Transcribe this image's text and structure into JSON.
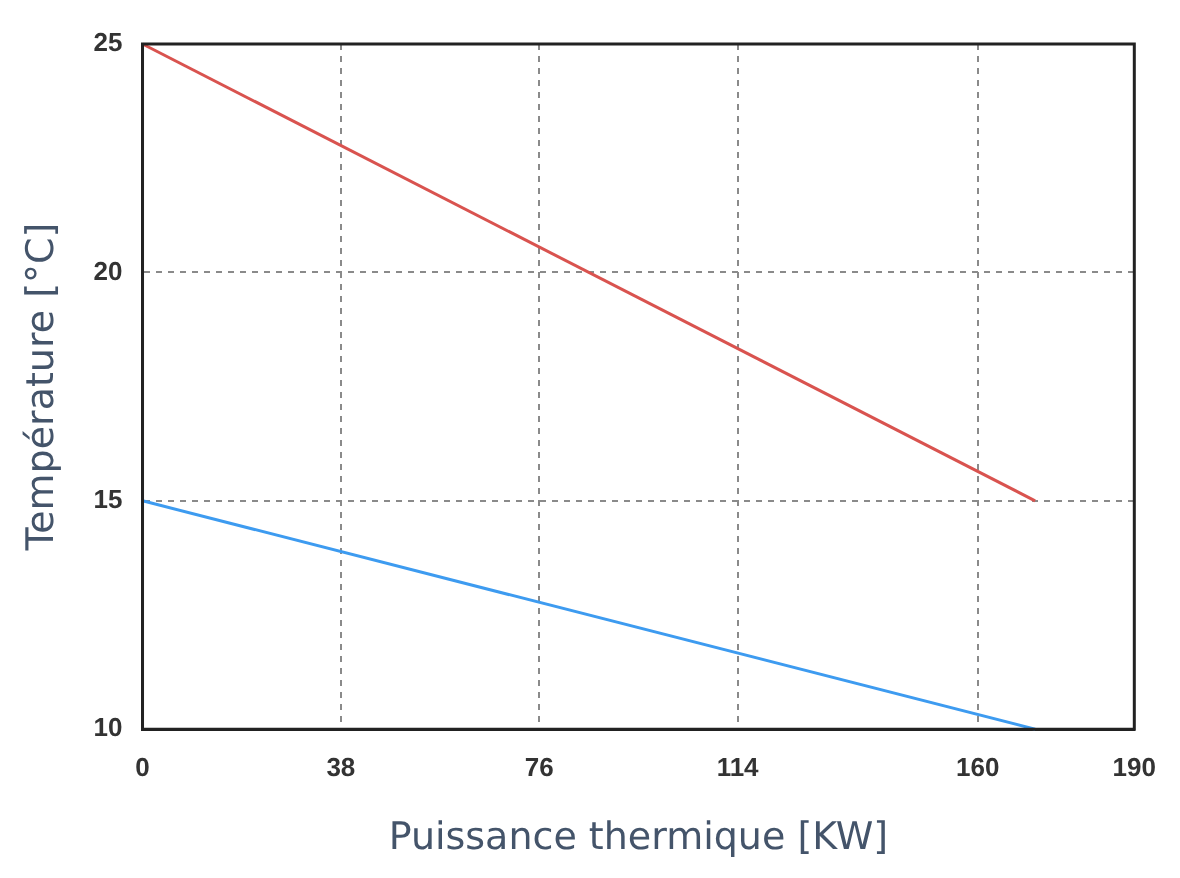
{
  "chart_data": {
    "type": "line",
    "xlabel": "Puissance thermique [KW]",
    "ylabel": "Température [°C]",
    "xlim": [
      0,
      190
    ],
    "xticks": [
      0,
      38,
      76,
      114,
      160,
      190
    ],
    "ylim": [
      10,
      25
    ],
    "yticks": [
      10,
      15,
      20,
      25
    ],
    "grid": true,
    "legend": false,
    "marker": "none",
    "line_style": "solid",
    "x": [
      0,
      171
    ],
    "series": [
      {
        "color": "#d9534f",
        "values": [
          25,
          15
        ]
      },
      {
        "color": "#3d9bf0",
        "values": [
          15,
          10
        ]
      }
    ]
  }
}
